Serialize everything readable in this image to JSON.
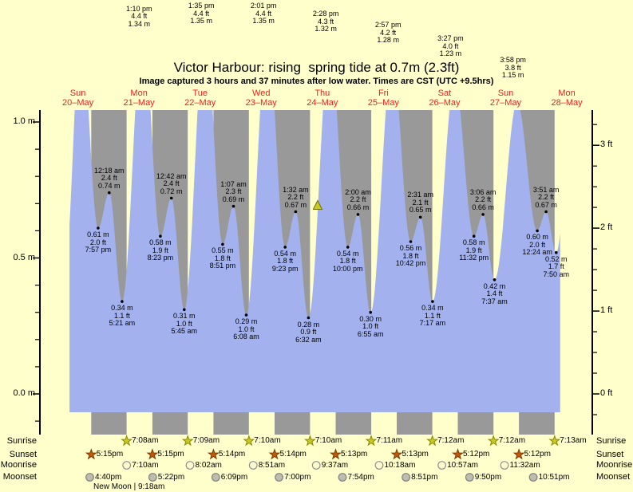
{
  "title": "Victor Harbour: rising  spring tide at 0.7m (2.3ft)",
  "subtitle": "Image captured 3 hours and 37 minutes after low water. Times are CST (UTC +9.5hrs)",
  "colors": {
    "background": "#FFFFCC",
    "night_band": "#999999",
    "water": "#A3B2EF",
    "day_label": "#F21D1D",
    "axis": "#000000",
    "annotation_text": "#000000",
    "current_marker_fill": "#C9C926",
    "current_marker_stroke": "#6E6E00",
    "sunrise_star_fill": "#C9C926",
    "sunrise_star_stroke": "#8A8A00",
    "sunset_star_fill": "#C4590A",
    "sunset_star_stroke": "#7D3A00",
    "moonrise_circle_fill": "#FBFBD0",
    "moonrise_circle_stroke": "#909090",
    "moonset_circle_fill": "#BDBDAD",
    "moonset_circle_stroke": "#808080"
  },
  "days": [
    {
      "weekday": "Sun",
      "date": "20–May"
    },
    {
      "weekday": "Mon",
      "date": "21–May"
    },
    {
      "weekday": "Tue",
      "date": "22–May"
    },
    {
      "weekday": "Wed",
      "date": "23–May"
    },
    {
      "weekday": "Thu",
      "date": "24–May"
    },
    {
      "weekday": "Fri",
      "date": "25–May"
    },
    {
      "weekday": "Sat",
      "date": "26–May"
    },
    {
      "weekday": "Sun",
      "date": "27–May"
    },
    {
      "weekday": "Mon",
      "date": "28–May"
    }
  ],
  "axes": {
    "left": [
      {
        "label": "1.0 m",
        "m": 1.0
      },
      {
        "label": "0.5 m",
        "m": 0.5
      },
      {
        "label": "0.0 m",
        "m": 0.0
      }
    ],
    "left_minor_m": [
      0.9,
      0.8,
      0.7,
      0.6,
      0.4,
      0.3,
      0.2,
      0.1,
      -0.1
    ],
    "right": [
      {
        "label": "3 ft",
        "ft": 3
      },
      {
        "label": "2 ft",
        "ft": 2
      },
      {
        "label": "1 ft",
        "ft": 1
      },
      {
        "label": "0 ft",
        "ft": 0
      }
    ],
    "right_minor_ft": [
      3.25,
      2.75,
      2.5,
      2.25,
      1.75,
      1.5,
      1.25,
      0.75,
      0.5,
      0.25,
      -0.25
    ]
  },
  "chart_data": {
    "type": "area",
    "x_unit": "hours since 00:00 on 20-May (CST)",
    "y_unit": "m",
    "ylim": [
      -0.15,
      1.044
    ],
    "draw_range_t": [
      8.7,
      201.4
    ],
    "current_time_marker": {
      "t": 106.15,
      "h": 0.67
    },
    "tide_events": [
      {
        "t": 7.2,
        "h": 0.5,
        "kind": "edge",
        "placement": "none",
        "lines": null
      },
      {
        "t": 13.167,
        "h": 1.34,
        "kind": "high",
        "placement": "top",
        "lines": [
          "1:10 pm",
          "4.4 ft",
          "1.34 m"
        ]
      },
      {
        "t": 19.95,
        "h": 0.61,
        "kind": "low",
        "placement": "chart",
        "lines": [
          "0.61 m",
          "2.0 ft",
          "7:57 pm"
        ]
      },
      {
        "t": 24.3,
        "h": 0.74,
        "kind": "high",
        "placement": "chart",
        "lines": [
          "12:18 am",
          "2.4 ft",
          "0.74 m"
        ]
      },
      {
        "t": 29.35,
        "h": 0.34,
        "kind": "low",
        "placement": "chart",
        "lines": [
          "0.34 m",
          "1.1 ft",
          "5:21 am"
        ]
      },
      {
        "t": 37.583,
        "h": 1.35,
        "kind": "high",
        "placement": "top",
        "lines": [
          "1:35 pm",
          "4.4 ft",
          "1.35 m"
        ]
      },
      {
        "t": 44.383,
        "h": 0.58,
        "kind": "low",
        "placement": "chart",
        "lines": [
          "0.58 m",
          "1.9 ft",
          "8:23 pm"
        ]
      },
      {
        "t": 48.7,
        "h": 0.72,
        "kind": "high",
        "placement": "chart",
        "lines": [
          "12:42 am",
          "2.4 ft",
          "0.72 m"
        ]
      },
      {
        "t": 53.75,
        "h": 0.31,
        "kind": "low",
        "placement": "chart",
        "lines": [
          "0.31 m",
          "1.0 ft",
          "5:45 am"
        ]
      },
      {
        "t": 62.017,
        "h": 1.35,
        "kind": "high",
        "placement": "top",
        "lines": [
          "2:01 pm",
          "4.4 ft",
          "1.35 m"
        ]
      },
      {
        "t": 68.85,
        "h": 0.55,
        "kind": "low",
        "placement": "chart",
        "lines": [
          "0.55 m",
          "1.8 ft",
          "8:51 pm"
        ]
      },
      {
        "t": 73.117,
        "h": 0.69,
        "kind": "high",
        "placement": "chart",
        "lines": [
          "1:07 am",
          "2.3 ft",
          "0.69 m"
        ]
      },
      {
        "t": 78.133,
        "h": 0.29,
        "kind": "low",
        "placement": "chart",
        "lines": [
          "0.29 m",
          "1.0 ft",
          "6:08 am"
        ]
      },
      {
        "t": 86.467,
        "h": 1.32,
        "kind": "high",
        "placement": "top",
        "lines": [
          "2:28 pm",
          "4.3 ft",
          "1.32 m"
        ]
      },
      {
        "t": 93.383,
        "h": 0.54,
        "kind": "low",
        "placement": "chart",
        "lines": [
          "0.54 m",
          "1.8 ft",
          "9:23 pm"
        ]
      },
      {
        "t": 97.533,
        "h": 0.67,
        "kind": "high",
        "placement": "chart",
        "lines": [
          "1:32 am",
          "2.2 ft",
          "0.67 m"
        ]
      },
      {
        "t": 102.533,
        "h": 0.28,
        "kind": "low",
        "placement": "chart",
        "lines": [
          "0.28 m",
          "0.9 ft",
          "6:32 am"
        ]
      },
      {
        "t": 110.95,
        "h": 1.28,
        "kind": "high",
        "placement": "top",
        "lines": [
          "2:57 pm",
          "4.2 ft",
          "1.28 m"
        ]
      },
      {
        "t": 118.0,
        "h": 0.54,
        "kind": "low",
        "placement": "chart",
        "lines": [
          "0.54 m",
          "1.8 ft",
          "10:00 pm"
        ]
      },
      {
        "t": 122.0,
        "h": 0.66,
        "kind": "high",
        "placement": "chart",
        "lines": [
          "2:00 am",
          "2.2 ft",
          "0.66 m"
        ]
      },
      {
        "t": 126.917,
        "h": 0.3,
        "kind": "low",
        "placement": "chart",
        "lines": [
          "0.30 m",
          "1.0 ft",
          "6:55 am"
        ]
      },
      {
        "t": 135.45,
        "h": 1.23,
        "kind": "high",
        "placement": "top",
        "lines": [
          "3:27 pm",
          "4.0 ft",
          "1.23 m"
        ]
      },
      {
        "t": 142.7,
        "h": 0.56,
        "kind": "low",
        "placement": "chart",
        "lines": [
          "0.56 m",
          "1.8 ft",
          "10:42 pm"
        ]
      },
      {
        "t": 146.517,
        "h": 0.65,
        "kind": "high",
        "placement": "chart",
        "lines": [
          "2:31 am",
          "2.1 ft",
          "0.65 m"
        ]
      },
      {
        "t": 151.283,
        "h": 0.34,
        "kind": "low",
        "placement": "chart",
        "lines": [
          "0.34 m",
          "1.1 ft",
          "7:17 am"
        ]
      },
      {
        "t": 159.967,
        "h": 1.15,
        "kind": "high",
        "placement": "top",
        "lines": [
          "3:58 pm",
          "3.8 ft",
          "1.15 m"
        ]
      },
      {
        "t": 167.533,
        "h": 0.58,
        "kind": "low",
        "placement": "chart",
        "lines": [
          "0.58 m",
          "1.9 ft",
          "11:32 pm"
        ]
      },
      {
        "t": 171.1,
        "h": 0.66,
        "kind": "high",
        "placement": "chart",
        "lines": [
          "3:06 am",
          "2.2 ft",
          "0.66 m"
        ]
      },
      {
        "t": 175.617,
        "h": 0.42,
        "kind": "low",
        "placement": "chart",
        "lines": [
          "0.42 m",
          "1.4 ft",
          "7:37 am"
        ]
      },
      {
        "t": 184.5,
        "h": 1.07,
        "kind": "high",
        "placement": "none",
        "lines": null
      },
      {
        "t": 192.4,
        "h": 0.6,
        "kind": "low",
        "placement": "chart",
        "lines": [
          "0.60 m",
          "2.0 ft",
          "12:24 am"
        ]
      },
      {
        "t": 195.85,
        "h": 0.67,
        "kind": "high",
        "placement": "chart",
        "lines": [
          "3:51 am",
          "2.2 ft",
          "0.67 m"
        ]
      },
      {
        "t": 199.833,
        "h": 0.52,
        "kind": "low",
        "placement": "chart",
        "lines": [
          "0.52 m",
          "1.7 ft",
          "7:50 am"
        ]
      },
      {
        "t": 206.5,
        "h": 1.05,
        "kind": "edge",
        "placement": "none",
        "lines": null
      }
    ]
  },
  "astro": {
    "row_labels": [
      "Sunrise",
      "Sunset",
      "Moonrise",
      "Moonset"
    ],
    "sunrise": [
      {
        "t": 31.133,
        "time": "7:08am"
      },
      {
        "t": 55.15,
        "time": "7:09am"
      },
      {
        "t": 79.167,
        "time": "7:10am"
      },
      {
        "t": 103.167,
        "time": "7:10am"
      },
      {
        "t": 127.183,
        "time": "7:11am"
      },
      {
        "t": 151.2,
        "time": "7:12am"
      },
      {
        "t": 175.2,
        "time": "7:12am"
      },
      {
        "t": 199.217,
        "time": "7:13am"
      }
    ],
    "sunset": [
      {
        "t": 17.25,
        "time": "5:15pm"
      },
      {
        "t": 41.25,
        "time": "5:15pm"
      },
      {
        "t": 65.233,
        "time": "5:14pm"
      },
      {
        "t": 89.233,
        "time": "5:14pm"
      },
      {
        "t": 113.217,
        "time": "5:13pm"
      },
      {
        "t": 137.217,
        "time": "5:13pm"
      },
      {
        "t": 161.2,
        "time": "5:12pm"
      },
      {
        "t": 185.2,
        "time": "5:12pm"
      }
    ],
    "moonrise": [
      {
        "t": 31.167,
        "time": "7:10am"
      },
      {
        "t": 56.033,
        "time": "8:02am"
      },
      {
        "t": 80.85,
        "time": "8:51am"
      },
      {
        "t": 105.617,
        "time": "9:37am"
      },
      {
        "t": 130.3,
        "time": "10:18am"
      },
      {
        "t": 154.95,
        "time": "10:57am"
      },
      {
        "t": 179.533,
        "time": "11:32am"
      }
    ],
    "moonset": [
      {
        "t": 16.667,
        "time": "4:40pm"
      },
      {
        "t": 41.367,
        "time": "5:22pm"
      },
      {
        "t": 66.15,
        "time": "6:09pm"
      },
      {
        "t": 91.0,
        "time": "7:00pm"
      },
      {
        "t": 115.9,
        "time": "7:54pm"
      },
      {
        "t": 140.85,
        "time": "8:51pm"
      },
      {
        "t": 165.833,
        "time": "9:50pm"
      },
      {
        "t": 190.85,
        "time": "10:51pm"
      }
    ],
    "moon_phase": "New Moon | 9:18am"
  }
}
